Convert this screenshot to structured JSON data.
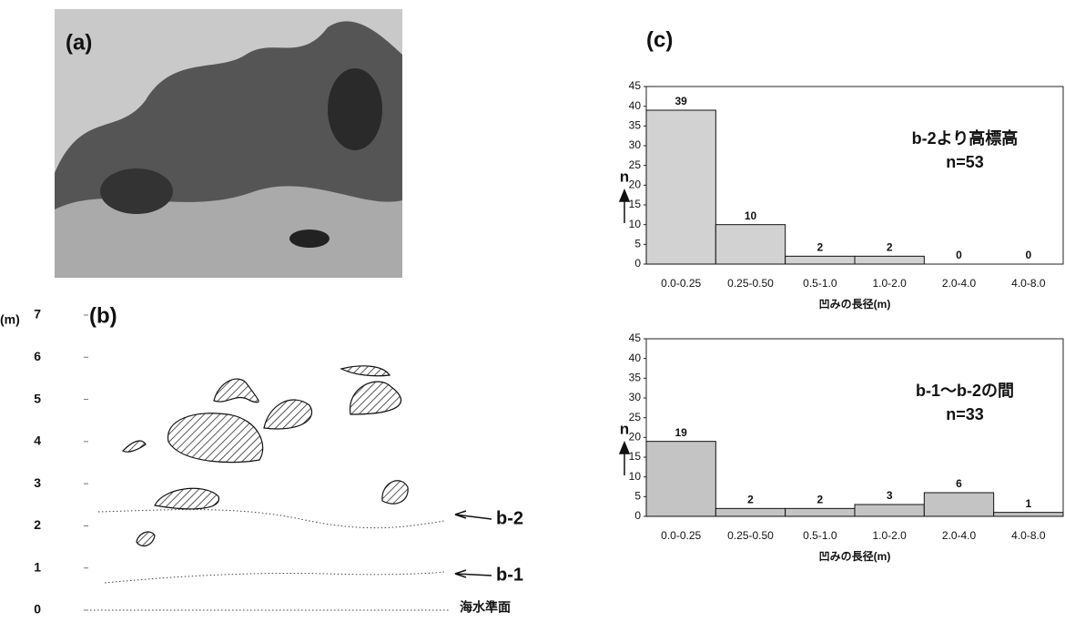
{
  "panels": {
    "a": "(a)",
    "b": "(b)",
    "c": "(c)"
  },
  "diagram": {
    "unit": "(m)",
    "yticks": [
      0,
      1,
      2,
      3,
      4,
      5,
      6,
      7
    ],
    "ylim": [
      0,
      7
    ],
    "b2": "b-2",
    "b1": "b-1",
    "sea": "海水準面"
  },
  "chart_data": [
    {
      "type": "bar",
      "annotation": [
        "b-2より高標高",
        "n=53"
      ],
      "y_label": "n",
      "x_label": "凹みの長径(m)",
      "categories": [
        "0.0-0.25",
        "0.25-0.50",
        "0.5-1.0",
        "1.0-2.0",
        "2.0-4.0",
        "4.0-8.0"
      ],
      "values": [
        39,
        10,
        2,
        2,
        0,
        0
      ],
      "color": "#d2d2d2",
      "ylim": [
        0,
        45
      ],
      "yticks": [
        0,
        5,
        10,
        15,
        20,
        25,
        30,
        35,
        40,
        45
      ]
    },
    {
      "type": "bar",
      "annotation": [
        "b-1～b-2の間",
        "n=33"
      ],
      "y_label": "n",
      "x_label": "凹みの長径(m)",
      "categories": [
        "0.0-0.25",
        "0.25-0.50",
        "0.5-1.0",
        "1.0-2.0",
        "2.0-4.0",
        "4.0-8.0"
      ],
      "values": [
        19,
        2,
        2,
        3,
        6,
        1
      ],
      "color": "#c4c4c4",
      "ylim": [
        0,
        45
      ],
      "yticks": [
        0,
        5,
        10,
        15,
        20,
        25,
        30,
        35,
        40,
        45
      ]
    }
  ]
}
